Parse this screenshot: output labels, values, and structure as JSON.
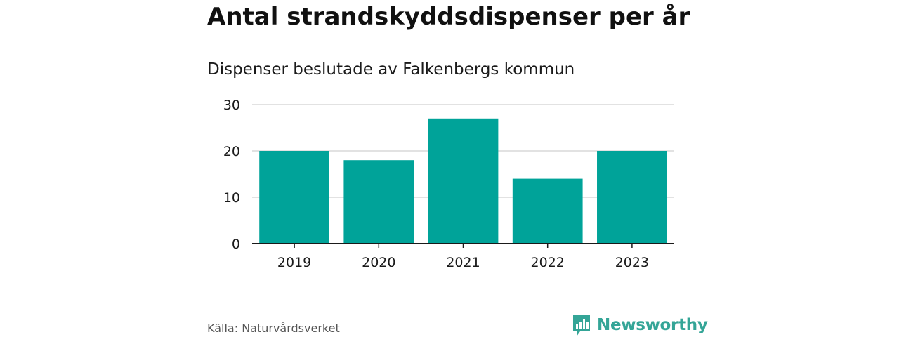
{
  "title": "Antal strandskyddsdispenser per år",
  "subtitle": "Dispenser beslutade av Falkenbergs kommun",
  "source": "Källa: Naturvårdsverket",
  "brand": {
    "name": "Newsworthy",
    "icon": "bar-chart-speech-bubble-icon",
    "color": "#34a597"
  },
  "colors": {
    "bar": "#00a399",
    "grid": "#d9d9d9",
    "axis": "#1a1a1a",
    "text": "#1a1a1a"
  },
  "chart_data": {
    "type": "bar",
    "categories": [
      "2019",
      "2020",
      "2021",
      "2022",
      "2023"
    ],
    "values": [
      20,
      18,
      27,
      14,
      20
    ],
    "title": "Antal strandskyddsdispenser per år",
    "subtitle": "Dispenser beslutade av Falkenbergs kommun",
    "xlabel": "",
    "ylabel": "",
    "ylim": [
      0,
      30
    ],
    "yticks": [
      0,
      10,
      20,
      30
    ],
    "grid": true,
    "legend": "none"
  }
}
